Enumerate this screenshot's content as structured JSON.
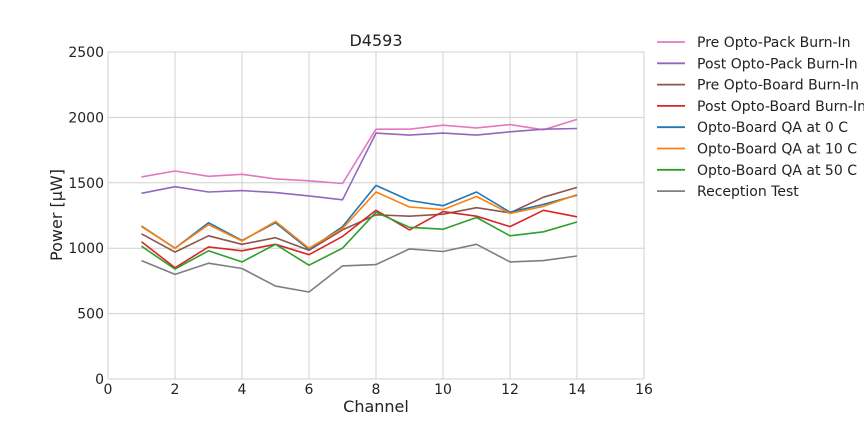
{
  "chart_data": {
    "type": "line",
    "title": "D4593",
    "xlabel": "Channel",
    "ylabel": "Power [μW]",
    "xlim": [
      0,
      16
    ],
    "ylim": [
      0,
      2500
    ],
    "xticks": [
      "0",
      "2",
      "4",
      "6",
      "8",
      "10",
      "12",
      "14",
      "16"
    ],
    "yticks": [
      "0",
      "500",
      "1000",
      "1500",
      "2000",
      "2500"
    ],
    "grid": true,
    "legend_position": "right-outside",
    "x": [
      1,
      2,
      3,
      4,
      5,
      6,
      7,
      8,
      9,
      10,
      11,
      12,
      13,
      14
    ],
    "series": [
      {
        "name": "Pre Opto-Pack Burn-In",
        "color": "#e377c2",
        "values": [
          1545,
          1590,
          1550,
          1565,
          1530,
          1515,
          1495,
          1910,
          1910,
          1940,
          1920,
          1945,
          1905,
          1985
        ]
      },
      {
        "name": "Post Opto-Pack Burn-In",
        "color": "#9467bd",
        "values": [
          1420,
          1470,
          1430,
          1440,
          1425,
          1400,
          1370,
          1880,
          1865,
          1880,
          1865,
          1890,
          1910,
          1915
        ]
      },
      {
        "name": "Pre Opto-Board Burn-In",
        "color": "#8c564b",
        "values": [
          1110,
          970,
          1095,
          1030,
          1080,
          985,
          1140,
          1255,
          1245,
          1260,
          1310,
          1270,
          1390,
          1465
        ]
      },
      {
        "name": "Post Opto-Board Burn-In",
        "color": "#d62728",
        "values": [
          1050,
          850,
          1010,
          980,
          1030,
          950,
          1090,
          1290,
          1140,
          1280,
          1245,
          1165,
          1290,
          1240
        ]
      },
      {
        "name": "Opto-Board QA at 0 C",
        "color": "#1f77b4",
        "values": [
          1170,
          1000,
          1195,
          1060,
          1195,
          990,
          1165,
          1480,
          1365,
          1325,
          1430,
          1275,
          1335,
          1405
        ]
      },
      {
        "name": "Opto-Board QA at 10 C",
        "color": "#ff7f0e",
        "values": [
          1165,
          1000,
          1180,
          1055,
          1205,
          1000,
          1150,
          1430,
          1315,
          1295,
          1395,
          1265,
          1320,
          1410
        ]
      },
      {
        "name": "Opto-Board QA at 50 C",
        "color": "#2ca02c",
        "values": [
          1015,
          840,
          980,
          895,
          1030,
          870,
          1000,
          1275,
          1160,
          1145,
          1235,
          1095,
          1125,
          1200
        ]
      },
      {
        "name": "Reception Test",
        "color": "#7f7f7f",
        "values": [
          905,
          800,
          885,
          845,
          710,
          665,
          865,
          875,
          995,
          975,
          1030,
          895,
          905,
          940
        ]
      }
    ]
  }
}
